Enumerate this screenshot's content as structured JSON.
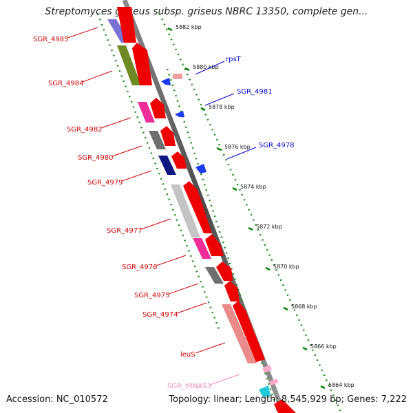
{
  "title": "Streptomyces griseus subsp. griseus NBRC 13350, complete gen...",
  "footer": {
    "accession": "Accession: NC_010572",
    "stats": "Topology: linear; Length: 8,545,929 bp; Genes: 7,222"
  },
  "colors": {
    "forward_arrow": "#ff0000",
    "reverse_arrow": "#0000ff",
    "scale_ticks": "#008000",
    "trna": "#ffaacc",
    "label_forward": "#cc0000",
    "label_reverse": "#0000cc",
    "label_trna": "#ee88bb"
  },
  "scale": {
    "unit": "kbp",
    "labels": [
      "5882 kbp",
      "5880 kbp",
      "5878 kbp",
      "5876 kbp",
      "5874 kbp",
      "5872 kbp",
      "5870 kbp",
      "5868 kbp",
      "5866 kbp",
      "5864 kbp"
    ]
  },
  "genes_left": [
    {
      "label": "SGR_4985",
      "box_color": "#7b72d6"
    },
    {
      "label": "SGR_4984",
      "box_color": "#6f8a23"
    },
    {
      "label": "SGR_4982",
      "box_color": "#ee2d98"
    },
    {
      "label": "SGR_4980",
      "box_color": "#6e6e6e"
    },
    {
      "label": "SGR_4979",
      "box_color": "#101780"
    },
    {
      "label": "SGR_4977",
      "box_color": "#c4c4c4"
    },
    {
      "label": "SGR_4976",
      "box_color": "#ee2d98"
    },
    {
      "label": "SGR_4975",
      "box_color": "#6e6e6e"
    },
    {
      "label": "SGR_4974",
      "box_color": ""
    },
    {
      "label": "leuS",
      "box_color": "#e98b8b"
    },
    {
      "label": "SGR_tRNA53",
      "box_color": ""
    }
  ],
  "genes_right": [
    {
      "label": "rpsT"
    },
    {
      "label": "SGR_4981"
    },
    {
      "label": "SGR_4978"
    }
  ]
}
